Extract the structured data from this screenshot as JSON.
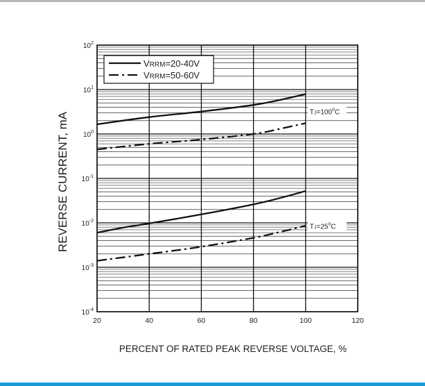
{
  "chart_data": {
    "type": "line",
    "title": "",
    "xlabel": "PERCENT OF RATED PEAK REVERSE VOLTAGE, %",
    "ylabel": "REVERSE CURRENT, mA",
    "xlim": [
      20,
      120
    ],
    "ylim": [
      0.0001,
      100
    ],
    "yscale": "log",
    "grid": true,
    "legend_position": "top-left",
    "x_ticks": [
      "20",
      "40",
      "60",
      "80",
      "100",
      "120"
    ],
    "y_ticks": [
      {
        "base": "10",
        "exp": "-4",
        "value": 0.0001
      },
      {
        "base": "10",
        "exp": "-3",
        "value": 0.001
      },
      {
        "base": "10",
        "exp": "-2",
        "value": 0.01
      },
      {
        "base": "10",
        "exp": "-1",
        "value": 0.1
      },
      {
        "base": "10",
        "exp": "0",
        "value": 1
      },
      {
        "base": "10",
        "exp": "1",
        "value": 10
      },
      {
        "base": "10",
        "exp": "2",
        "value": 100
      }
    ],
    "legend": [
      {
        "text": "VRRM=20-40V",
        "prefix": "V",
        "sub": "RRM",
        "rest": "=20-40V",
        "style": "solid"
      },
      {
        "text": "VRRM=50-60V",
        "prefix": "V",
        "sub": "RRM",
        "rest": "=50-60V",
        "style": "dashdot"
      }
    ],
    "annotations": [
      {
        "t": "T",
        "sub": "J",
        "mid": "=100",
        "deg": "o",
        "unit": "C",
        "x": 100,
        "y": 3.2
      },
      {
        "t": "T",
        "sub": "J",
        "mid": "=25",
        "deg": "o",
        "unit": "C",
        "x": 100,
        "y": 0.0085
      }
    ],
    "series": [
      {
        "group": "TJ=100°C",
        "style": "solid",
        "x": [
          20,
          40,
          60,
          80,
          90,
          100
        ],
        "y": [
          1.65,
          2.4,
          3.2,
          4.5,
          5.8,
          7.9
        ]
      },
      {
        "group": "TJ=100°C",
        "style": "dashdot",
        "x": [
          20,
          40,
          60,
          80,
          90,
          100
        ],
        "y": [
          0.45,
          0.6,
          0.75,
          1.0,
          1.3,
          1.75
        ]
      },
      {
        "group": "TJ=25°C",
        "style": "solid",
        "x": [
          20,
          30,
          40,
          60,
          80,
          90,
          100
        ],
        "y": [
          0.006,
          0.0078,
          0.0097,
          0.0155,
          0.026,
          0.036,
          0.052
        ]
      },
      {
        "group": "TJ=25°C",
        "style": "dashdot",
        "x": [
          20,
          40,
          60,
          80,
          90,
          100
        ],
        "y": [
          0.0014,
          0.002,
          0.0029,
          0.0046,
          0.0062,
          0.0086
        ]
      }
    ]
  }
}
